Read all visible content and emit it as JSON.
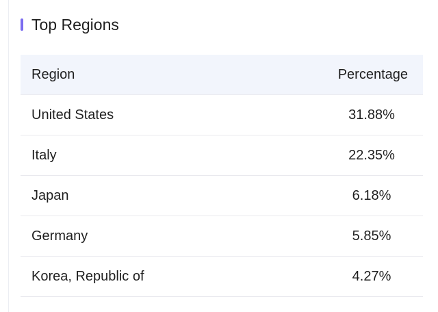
{
  "header": {
    "title": "Top Regions"
  },
  "table": {
    "columns": [
      "Region",
      "Percentage"
    ],
    "rows": [
      [
        "United States",
        "31.88%"
      ],
      [
        "Italy",
        "22.35%"
      ],
      [
        "Japan",
        "6.18%"
      ],
      [
        "Germany",
        "5.85%"
      ],
      [
        "Korea, Republic of",
        "4.27%"
      ]
    ]
  }
}
